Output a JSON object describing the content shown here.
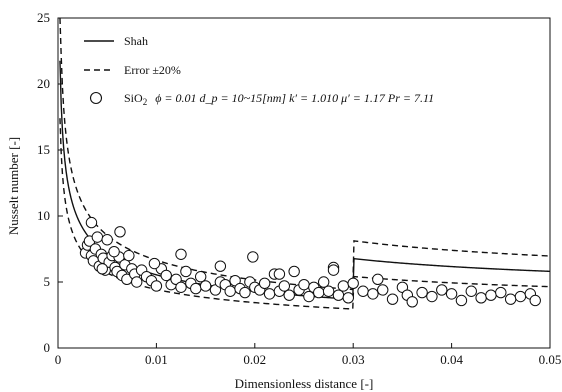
{
  "chart_data": {
    "type": "scatter",
    "xlabel": "Dimensionless distance [-]",
    "ylabel": "Nusselt number [-]",
    "xlim": [
      0,
      0.05
    ],
    "ylim": [
      0,
      25
    ],
    "x_ticks": [
      "0",
      "0.01",
      "0.02",
      "0.03",
      "0.04",
      "0.05"
    ],
    "y_ticks": [
      "0",
      "5",
      "10",
      "15",
      "20",
      "25"
    ],
    "grid": false,
    "legend_position": "top-left",
    "legend": {
      "shah": "Shah",
      "error": "Error ±20%",
      "data_prefix": "SiO",
      "data_sub": "2",
      "data_params": "ϕ = 0.01  d_p = 10~15[nm]  k′ = 1.010  μ′ = 1.17  Pr = 7.11"
    },
    "series": [
      {
        "name": "Shah",
        "style": "solid-line"
      },
      {
        "name": "Error ±20%",
        "style": "dashed-line"
      },
      {
        "name": "SiO2 ϕ = 0.01 d_p = 10~15[nm] k′ = 1.010 μ′ = 1.17 Pr = 7.11",
        "style": "open-circle",
        "x": [
          0.0028,
          0.003,
          0.0032,
          0.0034,
          0.0036,
          0.0038,
          0.004,
          0.0042,
          0.0044,
          0.0046,
          0.0048,
          0.005,
          0.0052,
          0.0055,
          0.0058,
          0.006,
          0.0062,
          0.0065,
          0.0068,
          0.007,
          0.0072,
          0.0075,
          0.0078,
          0.008,
          0.0085,
          0.009,
          0.0095,
          0.01,
          0.0105,
          0.011,
          0.0115,
          0.012,
          0.0125,
          0.013,
          0.0135,
          0.014,
          0.0145,
          0.015,
          0.016,
          0.0165,
          0.017,
          0.0175,
          0.018,
          0.0185,
          0.019,
          0.0195,
          0.02,
          0.0205,
          0.021,
          0.0215,
          0.022,
          0.0225,
          0.023,
          0.0235,
          0.024,
          0.0245,
          0.025,
          0.0255,
          0.026,
          0.0265,
          0.027,
          0.0275,
          0.028,
          0.0285,
          0.029,
          0.0295,
          0.03,
          0.031,
          0.032,
          0.0325,
          0.033,
          0.034,
          0.035,
          0.0355,
          0.036,
          0.037,
          0.038,
          0.039,
          0.04,
          0.041,
          0.042,
          0.043,
          0.044,
          0.045,
          0.046,
          0.047,
          0.048,
          0.0485,
          0.0063,
          0.0098,
          0.0125,
          0.0165,
          0.0198,
          0.0225,
          0.028,
          0.0034,
          0.0045,
          0.0057
        ],
        "y": [
          7.2,
          7.8,
          8.1,
          7.0,
          6.6,
          7.5,
          8.4,
          6.2,
          7.1,
          6.8,
          5.9,
          8.2,
          6.5,
          7.0,
          6.1,
          5.8,
          6.9,
          5.5,
          6.3,
          5.2,
          7.0,
          6.0,
          5.6,
          5.0,
          5.9,
          5.4,
          5.1,
          4.7,
          6.0,
          5.5,
          4.8,
          5.2,
          4.6,
          5.8,
          4.9,
          4.5,
          5.4,
          4.7,
          4.4,
          5.0,
          4.8,
          4.3,
          5.1,
          4.5,
          4.2,
          5.0,
          4.6,
          4.4,
          4.9,
          4.1,
          5.6,
          4.3,
          4.7,
          4.0,
          5.8,
          4.4,
          4.8,
          3.9,
          4.6,
          4.2,
          5.0,
          4.3,
          6.1,
          4.0,
          4.7,
          3.8,
          4.9,
          4.3,
          4.1,
          5.2,
          4.4,
          3.7,
          4.6,
          4.0,
          3.5,
          4.2,
          3.9,
          4.4,
          4.1,
          3.6,
          4.3,
          3.8,
          4.0,
          4.2,
          3.7,
          3.9,
          4.1,
          3.6,
          8.8,
          6.4,
          7.1,
          6.2,
          6.9,
          5.6,
          5.9,
          9.5,
          6.0,
          7.3
        ]
      }
    ]
  }
}
